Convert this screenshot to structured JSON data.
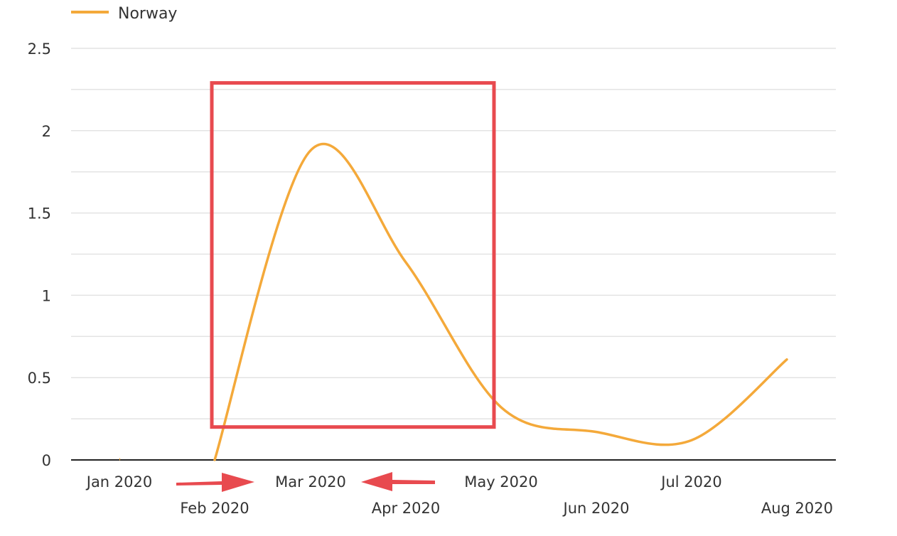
{
  "colors": {
    "series": "#f4a93a",
    "highlight": "#e84a4f",
    "gridline": "#e3e3e3",
    "axis": "#222222"
  },
  "icons": [
    "legend-line-swatch",
    "arrow-right-icon",
    "arrow-left-icon"
  ],
  "chart_data": {
    "type": "line",
    "title": "",
    "xlabel": "",
    "ylabel": "",
    "legend": {
      "position": "top-left",
      "entries": [
        "Norway"
      ]
    },
    "grid": true,
    "smooth": true,
    "ylim": [
      0,
      2.5
    ],
    "y_ticks": [
      "0",
      "0.5",
      "1",
      "1.5",
      "2",
      "2.5"
    ],
    "y_tick_values": [
      0,
      0.5,
      1,
      1.5,
      2,
      2.5
    ],
    "categories": [
      "Jan 2020",
      "Feb 2020",
      "Mar 2020",
      "Apr 2020",
      "May 2020",
      "Jun 2020",
      "Jul 2020",
      "Aug 2020"
    ],
    "series": [
      {
        "name": "Norway",
        "color": "#f4a93a",
        "values": [
          0,
          0,
          1.88,
          1.2,
          0.32,
          0.17,
          0.12,
          0.61
        ]
      }
    ],
    "annotations": {
      "highlight_box": {
        "from": "Feb 2020",
        "to": "May 2020",
        "y_range": [
          0.2,
          2.29
        ]
      },
      "arrows": [
        {
          "from": "Jan 2020",
          "to": "Mar 2020",
          "direction": "right"
        },
        {
          "from": "May 2020",
          "to": "Mar 2020",
          "direction": "left"
        }
      ]
    }
  }
}
